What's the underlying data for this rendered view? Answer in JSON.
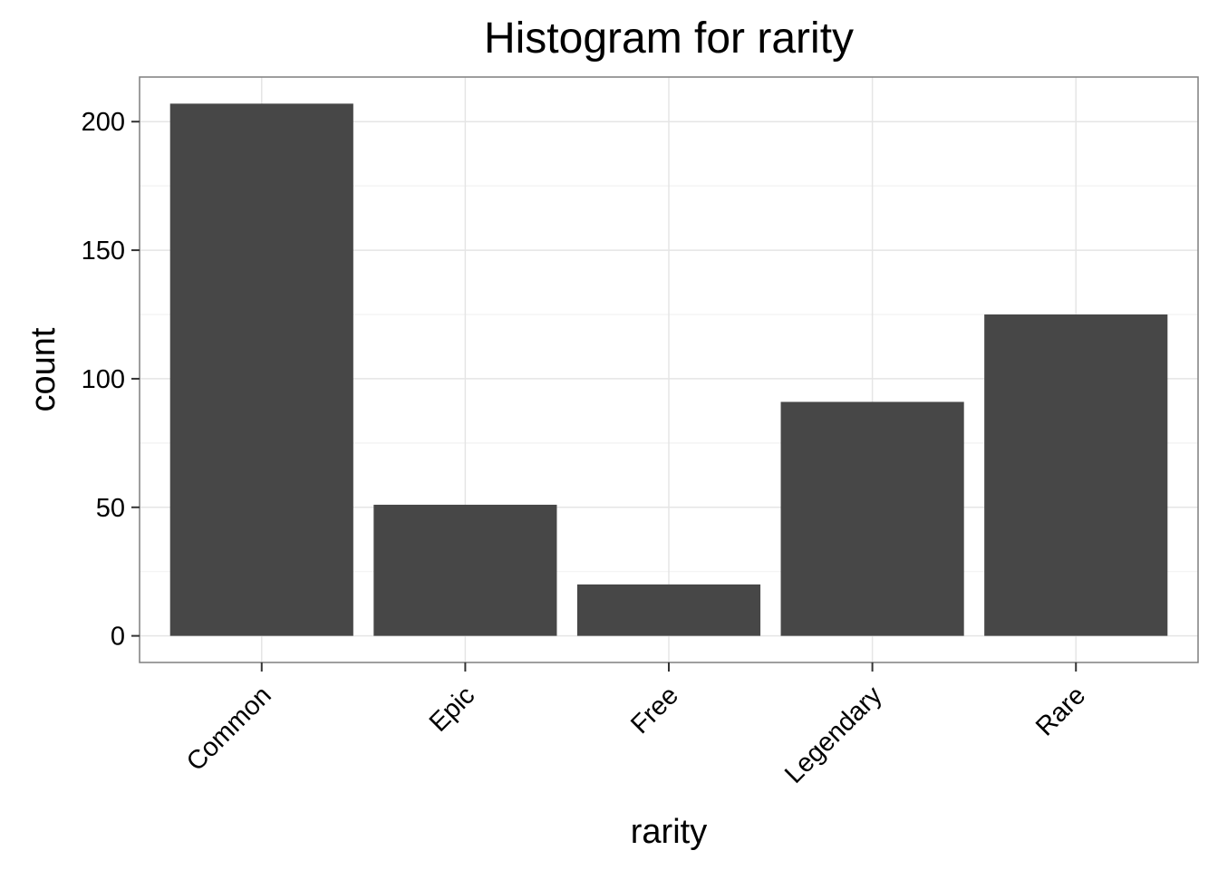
{
  "chart_data": {
    "type": "bar",
    "title": "Histogram for rarity",
    "xlabel": "rarity",
    "ylabel": "count",
    "categories": [
      "Common",
      "Epic",
      "Free",
      "Legendary",
      "Rare"
    ],
    "values": [
      207,
      51,
      20,
      91,
      125
    ],
    "yticks": [
      0,
      50,
      100,
      150,
      200
    ],
    "ylim": [
      -10.35,
      217.35
    ],
    "grid": true,
    "legend": "none",
    "colors": {
      "bar": "#474747",
      "panel_border": "#7f7f7f",
      "grid_major": "#e5e5e5",
      "grid_minor": "#f2f2f2",
      "tick": "#333333"
    }
  }
}
